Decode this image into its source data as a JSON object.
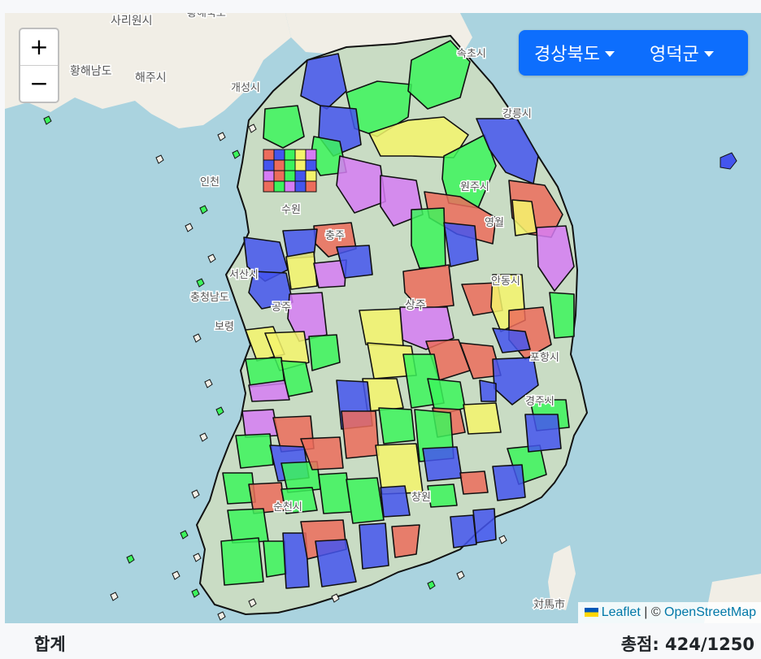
{
  "selectors": {
    "province": "경상북도",
    "county": "영덕군"
  },
  "zoom": {
    "in_label": "+",
    "out_label": "−"
  },
  "attribution": {
    "leaflet": "Leaflet",
    "separator": " | © ",
    "osm": "OpenStreetMap"
  },
  "footer": {
    "total_label": "합계",
    "score_label": "총점:",
    "score_value": "424/1250"
  },
  "map_labels": [
    "사리원시",
    "황해남도",
    "해주시",
    "개성시",
    "속초시",
    "강릉시",
    "인천",
    "수원",
    "원주시",
    "영월",
    "충주",
    "서산시",
    "안동시",
    "충청남도",
    "공주",
    "보령",
    "상주",
    "포항시",
    "경주시",
    "순천시",
    "창원",
    "対馬市",
    "황해북도"
  ],
  "colors": {
    "green": "#3cf45c",
    "blue": "#4455ee",
    "yellow": "#f4f46c",
    "red": "#ec6c5c",
    "violet": "#d67cf4",
    "sea": "#aad3df",
    "land": "#f1eee6",
    "button": "#0d6efd"
  }
}
